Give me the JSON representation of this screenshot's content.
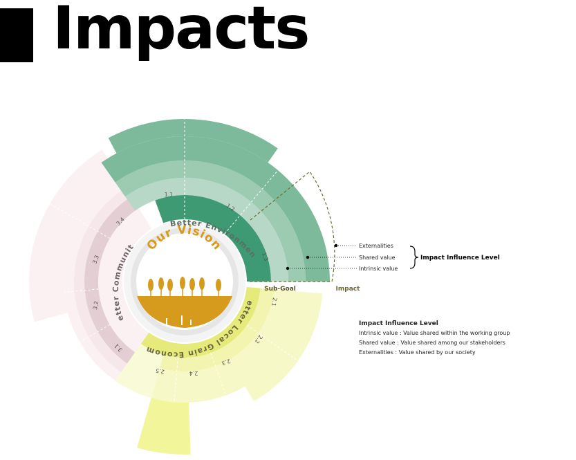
{
  "page": {
    "title": "Impacts"
  },
  "vision": {
    "title": "Our Vision"
  },
  "goals": [
    {
      "label": "Better Environment",
      "color": "#5fa889"
    },
    {
      "label": "Better Local Grain Economy",
      "color": "#eef08a"
    },
    {
      "label": "Better Community",
      "color": "#e7d3d6"
    }
  ],
  "subgoals": {
    "environment": [
      "1.1",
      "1.2",
      "1.3"
    ],
    "grain": [
      "2.1",
      "2.2",
      "2.3",
      "2.4",
      "2.5"
    ],
    "community": [
      "3.1",
      "3.2",
      "3.3",
      "3.4"
    ]
  },
  "axis_labels": {
    "subgoal": "Sub-Goal",
    "impact": "Impact"
  },
  "influence_levels": [
    "Externalities",
    "Shared value",
    "Intrinsic value"
  ],
  "bracket_label": "Impact Influence Level",
  "legend": {
    "title": "Impact Influence Level",
    "lines": [
      "Intrinsic value : Value shared within the working group",
      "Shared value : Value shared among our stakeholders",
      "Externalities : Value shared by our society"
    ]
  },
  "colors": {
    "green_dark": "#3d9a73",
    "green_mid": "#7dba9b",
    "green_light": "#b7d8c6",
    "yellow_dark": "#e6ea7a",
    "yellow_light": "#f7f8c8",
    "pink_dark": "#e3cfd3",
    "pink_light": "#fbf1f2",
    "vision_gold": "#d69a1c",
    "brown_dash": "#6e6a2a"
  }
}
